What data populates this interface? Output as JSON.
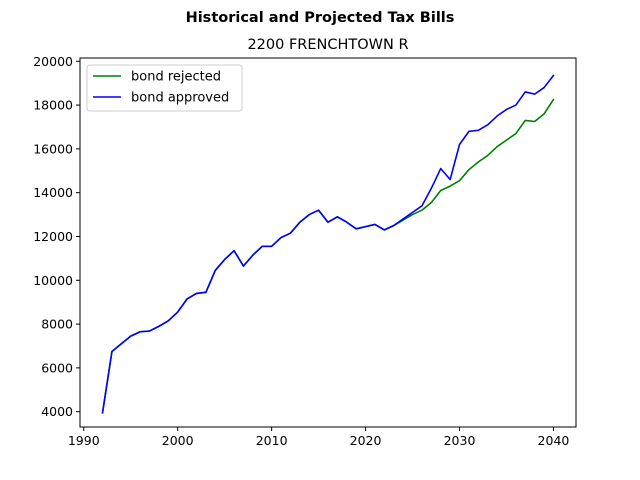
{
  "chart_data": {
    "type": "line",
    "suptitle": "Historical and Projected Tax Bills",
    "title": "2200 FRENCHTOWN R",
    "xlabel": "",
    "ylabel": "",
    "xlim": [
      1989.6,
      2042.4
    ],
    "ylim": [
      3300,
      20150
    ],
    "xticks": [
      1990,
      2000,
      2010,
      2020,
      2030,
      2040
    ],
    "yticks": [
      4000,
      6000,
      8000,
      10000,
      12000,
      14000,
      16000,
      18000,
      20000
    ],
    "grid": false,
    "legend_position": "upper-left",
    "series": [
      {
        "name": "bond rejected",
        "color": "#008000",
        "x": [
          1992,
          1993,
          1994,
          1995,
          1996,
          1997,
          1998,
          1999,
          2000,
          2001,
          2002,
          2003,
          2004,
          2005,
          2006,
          2007,
          2008,
          2009,
          2010,
          2011,
          2012,
          2013,
          2014,
          2015,
          2016,
          2017,
          2018,
          2019,
          2020,
          2021,
          2022,
          2023,
          2024,
          2025,
          2026,
          2027,
          2028,
          2029,
          2030,
          2031,
          2032,
          2033,
          2034,
          2035,
          2036,
          2037,
          2038,
          2039,
          2040
        ],
        "y": [
          3950,
          6750,
          7100,
          7450,
          7650,
          7680,
          7900,
          8150,
          8550,
          9150,
          9400,
          9450,
          10450,
          10950,
          11350,
          10650,
          11150,
          11550,
          11550,
          11950,
          12150,
          12650,
          13000,
          13200,
          12650,
          12900,
          12650,
          12350,
          12450,
          12550,
          12300,
          12500,
          12750,
          13000,
          13200,
          13550,
          14100,
          14300,
          14550,
          15050,
          15400,
          15700,
          16100,
          16400,
          16700,
          17300,
          17250,
          17600,
          18250
        ]
      },
      {
        "name": "bond approved",
        "color": "#0000ff",
        "x": [
          1992,
          1993,
          1994,
          1995,
          1996,
          1997,
          1998,
          1999,
          2000,
          2001,
          2002,
          2003,
          2004,
          2005,
          2006,
          2007,
          2008,
          2009,
          2010,
          2011,
          2012,
          2013,
          2014,
          2015,
          2016,
          2017,
          2018,
          2019,
          2020,
          2021,
          2022,
          2023,
          2024,
          2025,
          2026,
          2027,
          2028,
          2029,
          2030,
          2031,
          2032,
          2033,
          2034,
          2035,
          2036,
          2037,
          2038,
          2039,
          2040
        ],
        "y": [
          3950,
          6750,
          7100,
          7450,
          7650,
          7680,
          7900,
          8150,
          8550,
          9150,
          9400,
          9450,
          10450,
          10950,
          11350,
          10650,
          11150,
          11550,
          11550,
          11950,
          12150,
          12650,
          13000,
          13200,
          12650,
          12900,
          12650,
          12350,
          12450,
          12550,
          12300,
          12500,
          12800,
          13100,
          13400,
          14200,
          15100,
          14600,
          16200,
          16800,
          16850,
          17100,
          17500,
          17800,
          18000,
          18600,
          18500,
          18800,
          19350
        ]
      }
    ]
  }
}
